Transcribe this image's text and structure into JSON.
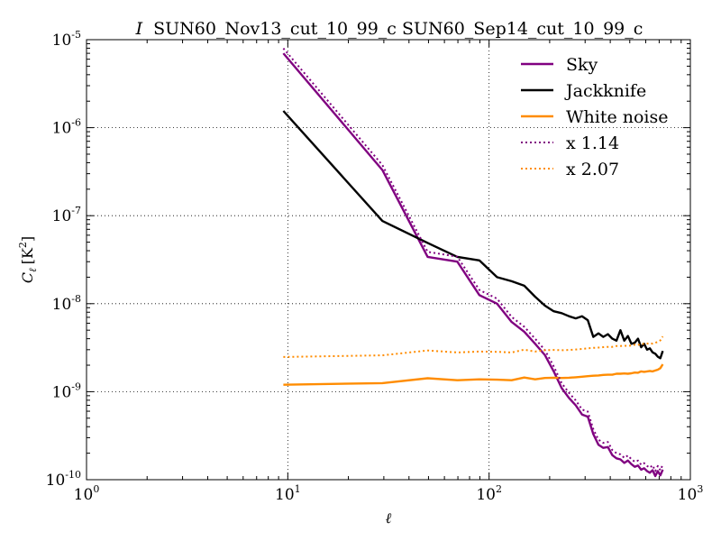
{
  "chart_data": {
    "type": "line",
    "title_prefix": "I",
    "title": "SUN60_Nov13_cut_10_99_c SUN60_Sep14_cut_10_99_c",
    "xlabel": "ℓ",
    "ylabel": "C",
    "ylabel_sub": "ℓ",
    "ylabel_unit": "[K",
    "ylabel_unit_exp": "2",
    "ylabel_unit_close": "]",
    "xscale": "log",
    "yscale": "log",
    "xlim": [
      1,
      1000
    ],
    "ylim": [
      1e-10,
      1e-05
    ],
    "grid": true,
    "legend_position": "top-right",
    "x_ticks": [
      {
        "value": 1,
        "base": "10",
        "exp": "0"
      },
      {
        "value": 10,
        "base": "10",
        "exp": "1"
      },
      {
        "value": 100,
        "base": "10",
        "exp": "2"
      },
      {
        "value": 1000,
        "base": "10",
        "exp": "3"
      }
    ],
    "y_ticks": [
      {
        "value": 1e-10,
        "base": "10",
        "exp": "-10"
      },
      {
        "value": 1e-09,
        "base": "10",
        "exp": "-9"
      },
      {
        "value": 1e-08,
        "base": "10",
        "exp": "-8"
      },
      {
        "value": 1e-07,
        "base": "10",
        "exp": "-7"
      },
      {
        "value": 1e-06,
        "base": "10",
        "exp": "-6"
      },
      {
        "value": 1e-05,
        "base": "10",
        "exp": "-5"
      }
    ],
    "series": [
      {
        "name": "Sky",
        "color": "#800080",
        "style": "solid",
        "x": [
          9.5,
          29.5,
          49.5,
          69.5,
          89.5,
          109.5,
          129.5,
          149.5,
          169.5,
          189.5,
          209.5,
          229.5,
          249.5,
          269.5,
          289.5,
          309.5,
          329.5,
          349.5,
          369.5,
          389.5,
          409.5,
          429.5,
          449.5,
          469.5,
          489.5,
          509.5,
          529.5,
          549.5,
          569.5,
          589.5,
          609.5,
          629.5,
          649.5,
          669.5,
          689.5,
          709.5,
          729.5
        ],
        "y": [
          7e-06,
          3.3e-07,
          3.4e-08,
          3e-08,
          1.25e-08,
          1e-08,
          6.2e-09,
          4.8e-09,
          3.5e-09,
          2.6e-09,
          1.7e-09,
          1.1e-09,
          8.5e-10,
          7e-10,
          5.5e-10,
          5.2e-10,
          3.3e-10,
          2.5e-10,
          2.3e-10,
          2.35e-10,
          1.9e-10,
          1.75e-10,
          1.7e-10,
          1.55e-10,
          1.65e-10,
          1.5e-10,
          1.4e-10,
          1.45e-10,
          1.3e-10,
          1.35e-10,
          1.25e-10,
          1.2e-10,
          1.28e-10,
          1.1e-10,
          1.25e-10,
          1.12e-10,
          1.3e-10
        ]
      },
      {
        "name": "Jackknife",
        "color": "#000000",
        "style": "solid",
        "x": [
          9.5,
          29.5,
          49.5,
          69.5,
          89.5,
          109.5,
          129.5,
          149.5,
          169.5,
          189.5,
          209.5,
          229.5,
          249.5,
          269.5,
          289.5,
          309.5,
          329.5,
          349.5,
          369.5,
          389.5,
          409.5,
          429.5,
          449.5,
          469.5,
          489.5,
          509.5,
          529.5,
          549.5,
          569.5,
          589.5,
          609.5,
          629.5,
          649.5,
          669.5,
          689.5,
          709.5,
          729.5
        ],
        "y": [
          1.55e-06,
          8.7e-08,
          4.9e-08,
          3.4e-08,
          3.1e-08,
          2e-08,
          1.8e-08,
          1.6e-08,
          1.2e-08,
          9.5e-09,
          8.2e-09,
          7.8e-09,
          7.2e-09,
          6.8e-09,
          7.2e-09,
          6.5e-09,
          4.2e-09,
          4.6e-09,
          4.2e-09,
          4.5e-09,
          4e-09,
          3.8e-09,
          5e-09,
          3.8e-09,
          4.3e-09,
          3.5e-09,
          3.6e-09,
          4e-09,
          3.2e-09,
          3.5e-09,
          3e-09,
          3.1e-09,
          2.8e-09,
          2.7e-09,
          2.5e-09,
          2.4e-09,
          2.9e-09
        ]
      },
      {
        "name": "White noise",
        "color": "#ff8c00",
        "style": "solid",
        "x": [
          9.5,
          29.5,
          49.5,
          69.5,
          89.5,
          109.5,
          129.5,
          149.5,
          169.5,
          189.5,
          209.5,
          229.5,
          249.5,
          269.5,
          289.5,
          309.5,
          329.5,
          349.5,
          369.5,
          389.5,
          409.5,
          429.5,
          449.5,
          469.5,
          489.5,
          509.5,
          529.5,
          549.5,
          569.5,
          589.5,
          609.5,
          629.5,
          649.5,
          669.5,
          689.5,
          709.5,
          729.5
        ],
        "y": [
          1.2e-09,
          1.25e-09,
          1.42e-09,
          1.35e-09,
          1.38e-09,
          1.37e-09,
          1.35e-09,
          1.45e-09,
          1.38e-09,
          1.43e-09,
          1.44e-09,
          1.43e-09,
          1.44e-09,
          1.46e-09,
          1.48e-09,
          1.5e-09,
          1.52e-09,
          1.53e-09,
          1.55e-09,
          1.56e-09,
          1.56e-09,
          1.6e-09,
          1.6e-09,
          1.61e-09,
          1.6e-09,
          1.62e-09,
          1.65e-09,
          1.64e-09,
          1.7e-09,
          1.68e-09,
          1.7e-09,
          1.72e-09,
          1.7e-09,
          1.74e-09,
          1.78e-09,
          1.85e-09,
          2.05e-09
        ]
      },
      {
        "name": "x 1.14",
        "color": "#800080",
        "style": "dotted",
        "x": [
          9.5,
          29.5,
          49.5,
          69.5,
          89.5,
          109.5,
          129.5,
          149.5,
          169.5,
          189.5,
          209.5,
          229.5,
          249.5,
          269.5,
          289.5,
          309.5,
          329.5,
          349.5,
          369.5,
          389.5,
          409.5,
          429.5,
          449.5,
          469.5,
          489.5,
          509.5,
          529.5,
          549.5,
          569.5,
          589.5,
          609.5,
          629.5,
          649.5,
          669.5,
          689.5,
          709.5,
          729.5
        ],
        "y": [
          7.98e-06,
          3.76e-07,
          3.88e-08,
          3.42e-08,
          1.43e-08,
          1.14e-08,
          7.07e-09,
          5.47e-09,
          3.99e-09,
          2.96e-09,
          1.94e-09,
          1.25e-09,
          9.69e-10,
          7.98e-10,
          6.27e-10,
          5.93e-10,
          3.76e-10,
          2.85e-10,
          2.62e-10,
          2.68e-10,
          2.17e-10,
          2e-10,
          1.94e-10,
          1.77e-10,
          1.88e-10,
          1.71e-10,
          1.6e-10,
          1.65e-10,
          1.48e-10,
          1.54e-10,
          1.43e-10,
          1.37e-10,
          1.46e-10,
          1.25e-10,
          1.43e-10,
          1.28e-10,
          1.48e-10
        ]
      },
      {
        "name": "x 2.07",
        "color": "#ff8c00",
        "style": "dotted",
        "x": [
          9.5,
          29.5,
          49.5,
          69.5,
          89.5,
          109.5,
          129.5,
          149.5,
          169.5,
          189.5,
          209.5,
          229.5,
          249.5,
          269.5,
          289.5,
          309.5,
          329.5,
          349.5,
          369.5,
          389.5,
          409.5,
          429.5,
          449.5,
          469.5,
          489.5,
          509.5,
          529.5,
          549.5,
          569.5,
          589.5,
          609.5,
          629.5,
          649.5,
          669.5,
          689.5,
          709.5,
          729.5
        ],
        "y": [
          2.48e-09,
          2.59e-09,
          2.94e-09,
          2.79e-09,
          2.86e-09,
          2.84e-09,
          2.79e-09,
          3e-09,
          2.86e-09,
          2.96e-09,
          2.98e-09,
          2.96e-09,
          2.98e-09,
          3.02e-09,
          3.06e-09,
          3.11e-09,
          3.15e-09,
          3.17e-09,
          3.21e-09,
          3.23e-09,
          3.23e-09,
          3.31e-09,
          3.31e-09,
          3.33e-09,
          3.31e-09,
          3.35e-09,
          3.42e-09,
          3.39e-09,
          3.52e-09,
          3.48e-09,
          3.52e-09,
          3.56e-09,
          3.52e-09,
          3.6e-09,
          3.68e-09,
          3.83e-09,
          4.24e-09
        ]
      }
    ]
  }
}
